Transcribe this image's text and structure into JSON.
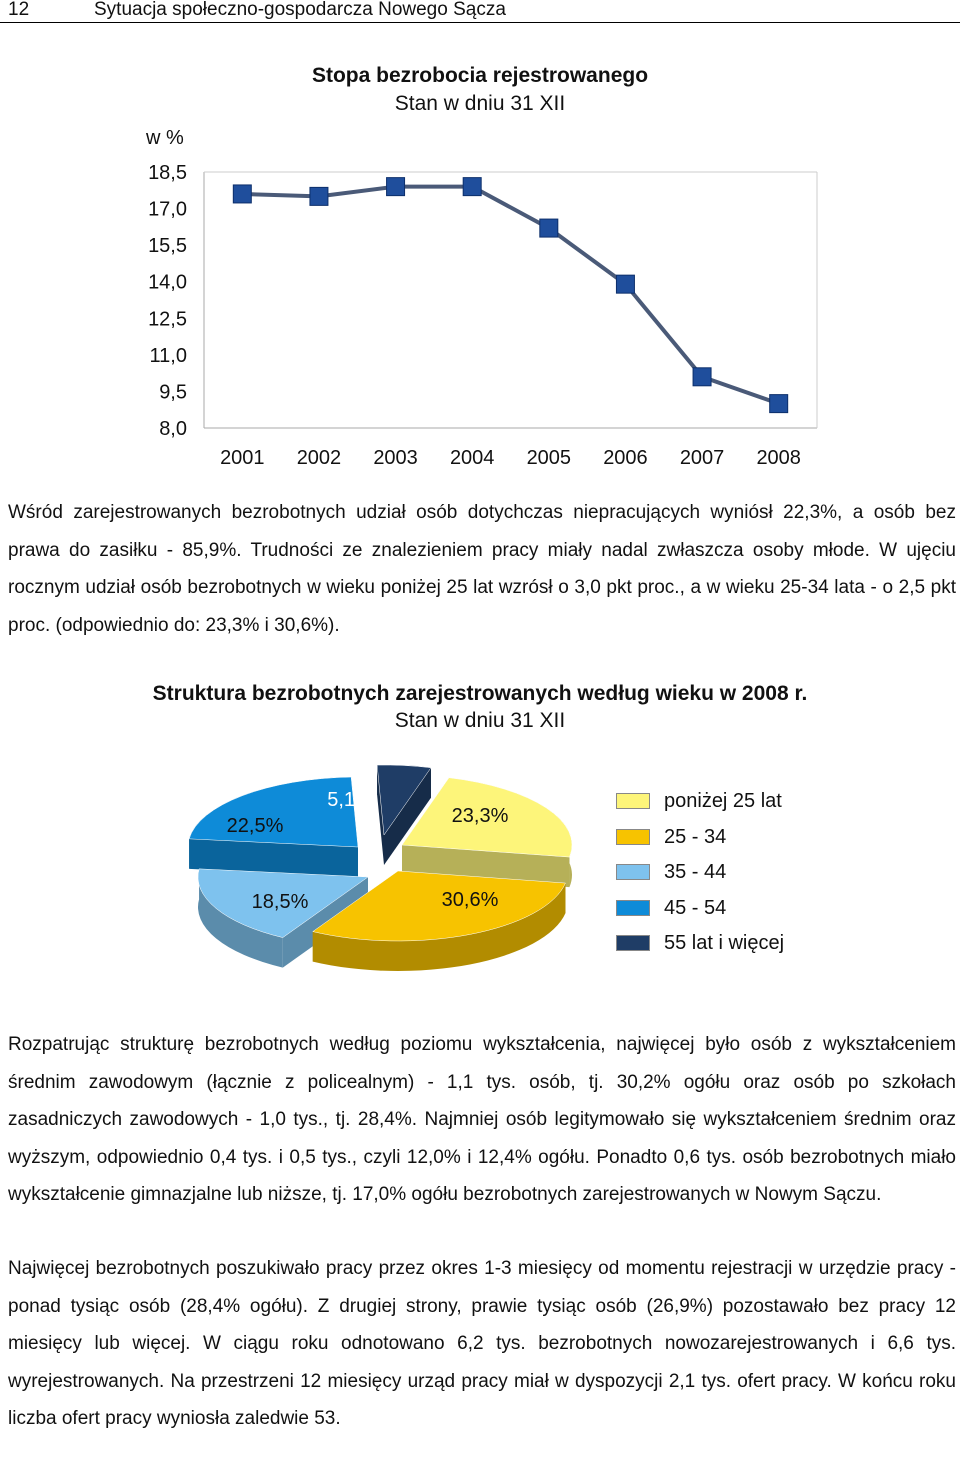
{
  "header": {
    "page_number": "12",
    "title": "Sytuacja społeczno-gospodarcza Nowego Sącza"
  },
  "line_chart": {
    "title": "Stopa bezrobocia rejestrowanego",
    "subtitle": "Stan w dniu 31 XII",
    "y_unit_label": "w %",
    "y_ticks": [
      "18,5",
      "17,0",
      "15,5",
      "14,0",
      "12,5",
      "11,0",
      "9,5",
      "8,0"
    ],
    "x_ticks": [
      "2001",
      "2002",
      "2003",
      "2004",
      "2005",
      "2006",
      "2007",
      "2008"
    ],
    "line_color": "#4a5a78",
    "marker_color": "#1f4e9c"
  },
  "pie_chart": {
    "title": "Struktura bezrobotnych zarejestrowanych według wieku w 2008 r.",
    "subtitle": "Stan w dniu 31 XII",
    "slice_labels": [
      "23,3%",
      "30,6%",
      "18,5%",
      "22,5%",
      "5,1%"
    ],
    "legend": [
      "poniżej 25 lat",
      "25 - 34",
      "35 - 44",
      "45 - 54",
      "55 lat i więcej"
    ],
    "colors": [
      "#fdf57a",
      "#f7c300",
      "#7ec2ee",
      "#0e8bd8",
      "#1f3d66"
    ]
  },
  "chart_data": [
    {
      "type": "line",
      "title": "Stopa bezrobocia rejestrowanego",
      "subtitle": "Stan w dniu 31 XII",
      "ylabel": "w %",
      "x": [
        "2001",
        "2002",
        "2003",
        "2004",
        "2005",
        "2006",
        "2007",
        "2008"
      ],
      "series": [
        {
          "values": [
            17.6,
            17.5,
            17.9,
            17.9,
            16.2,
            13.9,
            10.1,
            9.0
          ]
        }
      ],
      "ylim": [
        8.0,
        18.5
      ],
      "grid": false,
      "legend": "none"
    },
    {
      "type": "pie",
      "title": "Struktura bezrobotnych zarejestrowanych według wieku w 2008 r.",
      "subtitle": "Stan w dniu 31 XII",
      "categories": [
        "poniżej 25 lat",
        "25 - 34",
        "35 - 44",
        "45 - 54",
        "55 lat i więcej"
      ],
      "values": [
        23.3,
        30.6,
        18.5,
        22.5,
        5.1
      ],
      "legend": "right"
    }
  ],
  "paragraphs": {
    "p1": "Wśród zarejestrowanych bezrobotnych udział osób dotychczas niepracujących wyniósł 22,3%, a osób bez prawa do zasiłku - 85,9%. Trudności ze znalezieniem pracy miały nadal zwłaszcza osoby młode. W ujęciu rocznym udział osób bezrobotnych w wieku poniżej 25 lat wzrósł o 3,0 pkt proc., a w wieku 25-34 lata - o 2,5 pkt proc. (odpowiednio do: 23,3% i 30,6%).",
    "p2": "Rozpatrując strukturę bezrobotnych według poziomu wykształcenia, najwięcej było osób z wykształceniem średnim zawodowym (łącznie z policealnym) - 1,1 tys. osób, tj. 30,2% ogółu oraz osób po szkołach zasadniczych zawodowych - 1,0 tys., tj. 28,4%. Najmniej osób legitymowało się wykształceniem średnim oraz wyższym, odpowiednio 0,4 tys. i 0,5 tys., czyli 12,0% i 12,4% ogółu. Ponadto 0,6 tys. osób bezrobotnych miało wykształcenie gimnazjalne lub niższe, tj. 17,0% ogółu bezrobotnych zarejestrowanych w Nowym Sączu.",
    "p3": "Najwięcej bezrobotnych poszukiwało pracy przez okres 1-3 miesięcy od momentu rejestracji w urzędzie pracy - ponad tysiąc osób (28,4% ogółu). Z drugiej strony, prawie tysiąc osób (26,9%) pozostawało bez pracy 12 miesięcy lub więcej. W ciągu roku odnotowano 6,2 tys. bezrobotnych nowozarejestrowanych i 6,6 tys. wyrejestrowanych. Na przestrzeni 12 miesięcy urząd pracy miał w dyspozycji 2,1 tys. ofert pracy. W końcu roku liczba ofert pracy wyniosła zaledwie 53."
  }
}
